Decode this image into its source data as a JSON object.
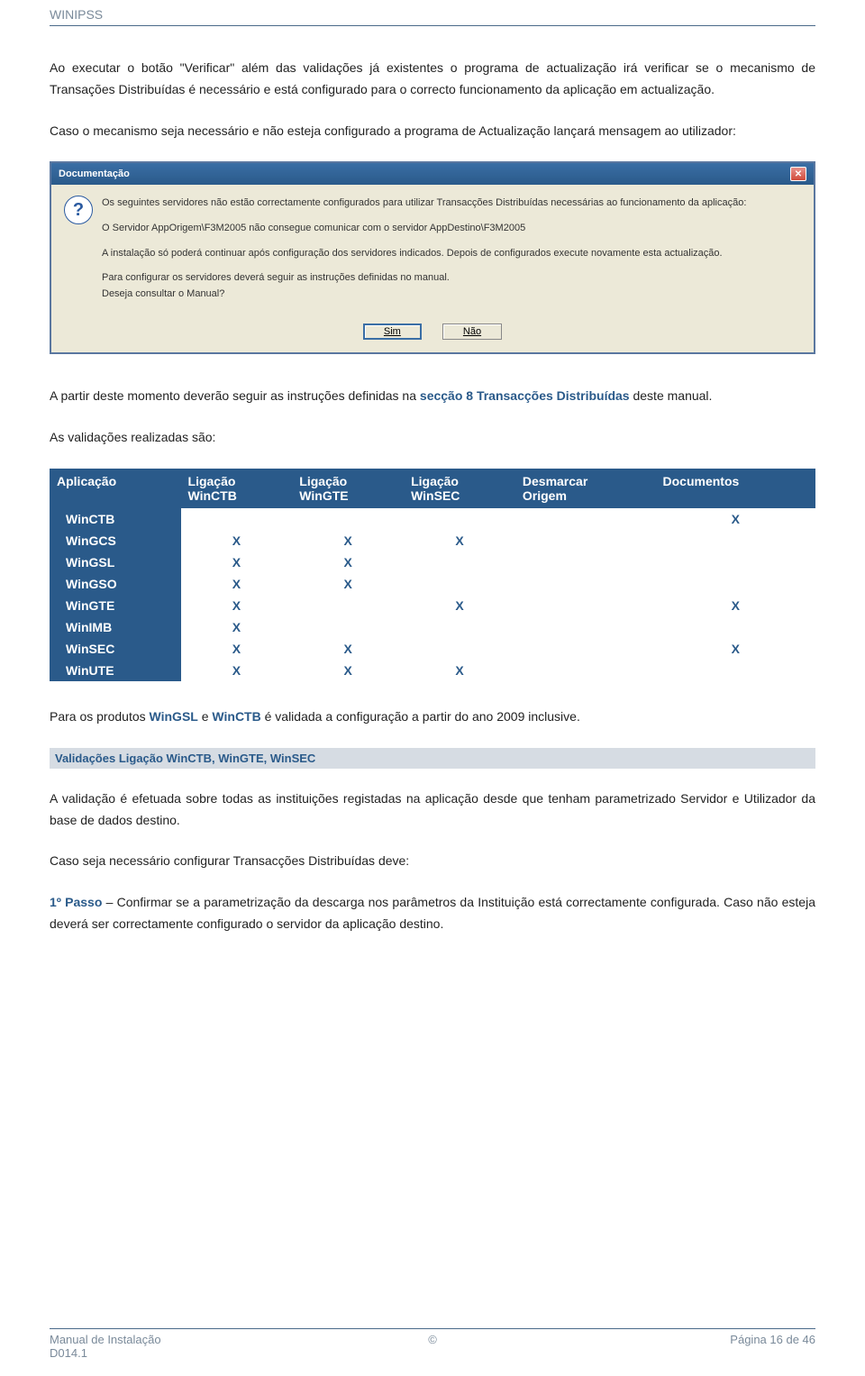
{
  "header": {
    "title": "WINIPSS"
  },
  "paragraphs": {
    "p1": "Ao executar o botão \"Verificar\" além das validações já existentes o programa de actualização irá verificar se o mecanismo de Transações Distribuídas é necessário e está configurado para o correcto funcionamento da aplicação em actualização.",
    "p2": "Caso o mecanismo seja necessário e não esteja configurado a programa de Actualização lançará mensagem ao utilizador:",
    "p3_pre": "A partir deste momento deverão seguir as instruções definidas na ",
    "p3_link": "secção 8 Transacções Distribuídas",
    "p3_post": " deste manual.",
    "p4": "As validações realizadas são:",
    "p5_pre": "Para os produtos ",
    "p5_b1": "WinGSL",
    "p5_mid": " e ",
    "p5_b2": "WinCTB",
    "p5_post": " é validada a configuração a partir do ano 2009 inclusive.",
    "sec_heading": "Validações Ligação WinCTB, WinGTE, WinSEC",
    "p6": "A validação é efetuada sobre todas as instituições registadas na aplicação desde que tenham parametrizado Servidor e Utilizador da base de dados destino.",
    "p7": "Caso seja necessário configurar Transacções Distribuídas deve:",
    "p8_passo": "1º Passo",
    "p8": " – Confirmar se a parametrização da descarga nos parâmetros da Instituição está correctamente configurada. Caso não esteja deverá ser correctamente configurado o servidor da aplicação destino."
  },
  "dialog": {
    "title": "Documentação",
    "line1": "Os seguintes servidores não estão correctamente configurados para utilizar Transacções Distribuídas necessárias ao funcionamento da aplicação:",
    "line2": "O Servidor AppOrigem\\F3M2005 não consegue comunicar com o servidor AppDestino\\F3M2005",
    "line3": "A instalação só poderá continuar após configuração dos servidores indicados. Depois de configurados execute novamente esta actualização.",
    "line4": "Para configurar os servidores deverá seguir as instruções definidas no manual.",
    "line5": "Deseja consultar o Manual?",
    "btn_yes": "Sim",
    "btn_no": "Não"
  },
  "table": {
    "headers": [
      "Aplicação",
      "Ligação WinCTB",
      "Ligação WinGTE",
      "Ligação WinSEC",
      "Desmarcar Origem",
      "Documentos"
    ],
    "rows": [
      {
        "app": "WinCTB",
        "c1": "",
        "c2": "",
        "c3": "",
        "c4": "",
        "c5": "X"
      },
      {
        "app": "WinGCS",
        "c1": "X",
        "c2": "X",
        "c3": "X",
        "c4": "",
        "c5": ""
      },
      {
        "app": "WinGSL",
        "c1": "X",
        "c2": "X",
        "c3": "",
        "c4": "",
        "c5": ""
      },
      {
        "app": "WinGSO",
        "c1": "X",
        "c2": "X",
        "c3": "",
        "c4": "",
        "c5": ""
      },
      {
        "app": "WinGTE",
        "c1": "X",
        "c2": "",
        "c3": "X",
        "c4": "",
        "c5": "X"
      },
      {
        "app": "WinIMB",
        "c1": "X",
        "c2": "",
        "c3": "",
        "c4": "",
        "c5": ""
      },
      {
        "app": "WinSEC",
        "c1": "X",
        "c2": "X",
        "c3": "",
        "c4": "",
        "c5": "X"
      },
      {
        "app": "WinUTE",
        "c1": "X",
        "c2": "X",
        "c3": "X",
        "c4": "",
        "c5": ""
      }
    ],
    "colors": {
      "header_bg": "#2a5a8a",
      "header_fg": "#ffffff",
      "mark": "#2a5a8a"
    }
  },
  "footer": {
    "left1": "Manual de Instalação",
    "left2": "D014.1",
    "center": "©",
    "right": "Página 16 de 46"
  }
}
